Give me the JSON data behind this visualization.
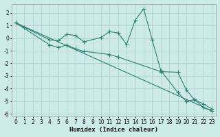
{
  "xlabel": "Humidex (Indice chaleur)",
  "ylabel": "",
  "bg_color": "#cceae8",
  "grid_color": "#aed4d0",
  "line_color": "#2e7d72",
  "xlim": [
    -0.5,
    23.5
  ],
  "ylim": [
    -6.2,
    2.7
  ],
  "yticks": [
    -6,
    -5,
    -4,
    -3,
    -2,
    -1,
    0,
    1,
    2
  ],
  "xticks": [
    0,
    1,
    2,
    3,
    4,
    5,
    6,
    7,
    8,
    9,
    10,
    11,
    12,
    13,
    14,
    15,
    16,
    17,
    18,
    19,
    20,
    21,
    22,
    23
  ],
  "series1_x": [
    0,
    1,
    4,
    5,
    6,
    7,
    8,
    10,
    11,
    12,
    13,
    14,
    15,
    16,
    17,
    19,
    20,
    21,
    22,
    23
  ],
  "series1_y": [
    1.2,
    0.85,
    -0.15,
    -0.2,
    0.3,
    0.2,
    -0.3,
    0.05,
    0.5,
    0.4,
    -0.5,
    1.4,
    2.3,
    -0.15,
    -2.55,
    -4.3,
    -5.0,
    -4.85,
    -5.5,
    -5.75
  ],
  "series2_x": [
    0,
    4,
    5,
    6,
    7,
    8,
    11,
    12,
    17,
    19,
    20,
    21,
    22,
    23
  ],
  "series2_y": [
    1.2,
    -0.55,
    -0.75,
    -0.55,
    -0.85,
    -1.05,
    -1.3,
    -1.5,
    -2.65,
    -2.7,
    -4.1,
    -4.9,
    -5.2,
    -5.6
  ],
  "series3_x": [
    0,
    23
  ],
  "series3_y": [
    1.2,
    -5.75
  ]
}
